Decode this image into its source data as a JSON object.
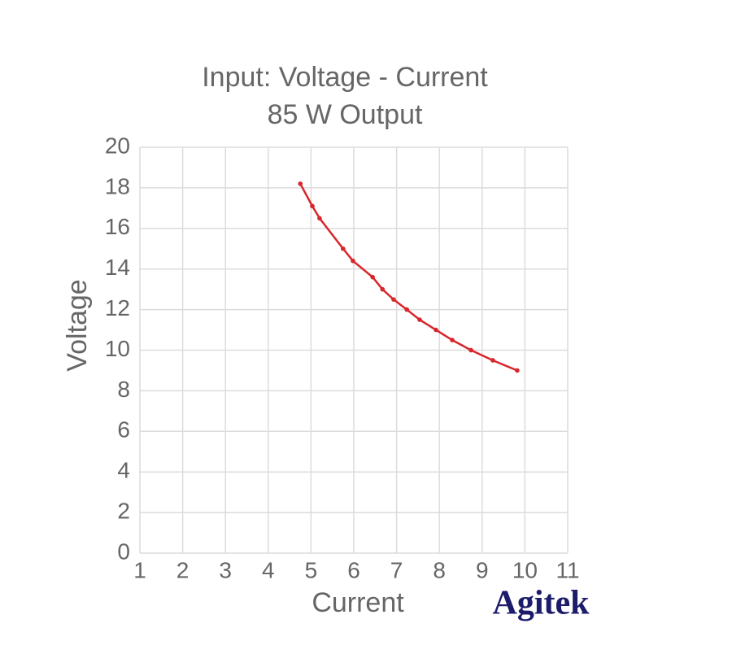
{
  "chart_data": {
    "type": "line",
    "title": "Input: Voltage - Current",
    "subtitle": "85 W Output",
    "x_label": "Current",
    "y_label": "Voltage",
    "watermark": "Agitek",
    "x": [
      4.75,
      5.03,
      5.2,
      5.75,
      5.98,
      6.44,
      6.67,
      6.93,
      7.24,
      7.54,
      7.92,
      8.3,
      8.74,
      9.25,
      9.82
    ],
    "values": [
      18.2,
      17.1,
      16.5,
      15.0,
      14.4,
      13.6,
      13.0,
      12.5,
      12.0,
      11.5,
      11.0,
      10.5,
      10.0,
      9.5,
      9.0
    ],
    "color": "#d8262c",
    "xlim": [
      1,
      11
    ],
    "xticks": [
      1,
      2,
      3,
      4,
      5,
      6,
      7,
      8,
      9,
      10,
      11
    ],
    "ylim": [
      0,
      20
    ],
    "yticks": [
      0,
      2,
      4,
      6,
      8,
      10,
      12,
      14,
      16,
      18,
      20
    ],
    "grid": true
  }
}
